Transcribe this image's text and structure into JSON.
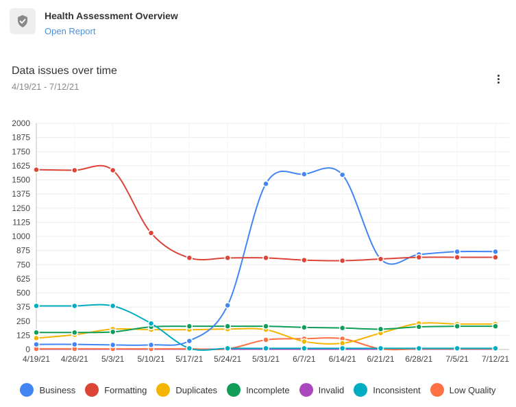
{
  "header": {
    "title": "Health Assessment Overview",
    "link": "Open Report",
    "icon": "shield-check-icon"
  },
  "card": {
    "title": "Data issues over time",
    "date_range": "4/19/21 - 7/12/21",
    "menu_icon": "more-vert-icon"
  },
  "chart_data": {
    "type": "line",
    "title": "Data issues over time",
    "subtitle": "4/19/21 - 7/12/21",
    "x": [
      "4/19/21",
      "4/26/21",
      "5/3/21",
      "5/10/21",
      "5/17/21",
      "5/24/21",
      "5/31/21",
      "6/7/21",
      "6/14/21",
      "6/21/21",
      "6/28/21",
      "7/5/21",
      "7/12/21"
    ],
    "ylim": [
      0,
      2000
    ],
    "yticks": [
      0,
      125,
      250,
      375,
      500,
      625,
      750,
      875,
      1000,
      1125,
      1250,
      1375,
      1500,
      1625,
      1750,
      1875,
      2000
    ],
    "grid": true,
    "legend_position": "bottom",
    "series": [
      {
        "name": "Business",
        "color": "#4285f4",
        "values": [
          45,
          45,
          40,
          40,
          75,
          390,
          1465,
          1550,
          1545,
          800,
          840,
          865,
          865
        ]
      },
      {
        "name": "Formatting",
        "color": "#db4437",
        "values": [
          1590,
          1585,
          1585,
          1030,
          810,
          810,
          810,
          790,
          785,
          800,
          815,
          815,
          815
        ]
      },
      {
        "name": "Duplicates",
        "color": "#f4b400",
        "values": [
          100,
          130,
          180,
          175,
          175,
          180,
          175,
          70,
          55,
          145,
          230,
          225,
          225
        ]
      },
      {
        "name": "Incomplete",
        "color": "#0f9d58",
        "values": [
          150,
          150,
          155,
          200,
          205,
          205,
          205,
          195,
          190,
          180,
          200,
          205,
          205
        ]
      },
      {
        "name": "Invalid",
        "color": "#ab47bc",
        "values": [
          2,
          2,
          2,
          2,
          2,
          2,
          2,
          2,
          2,
          2,
          2,
          2,
          2
        ]
      },
      {
        "name": "Inconsistent",
        "color": "#00acc1",
        "values": [
          385,
          385,
          385,
          230,
          10,
          10,
          10,
          10,
          10,
          10,
          10,
          10,
          10
        ]
      },
      {
        "name": "Low Quality",
        "color": "#ff7043",
        "values": [
          5,
          5,
          5,
          5,
          5,
          5,
          85,
          95,
          95,
          5,
          5,
          5,
          5
        ]
      }
    ]
  }
}
